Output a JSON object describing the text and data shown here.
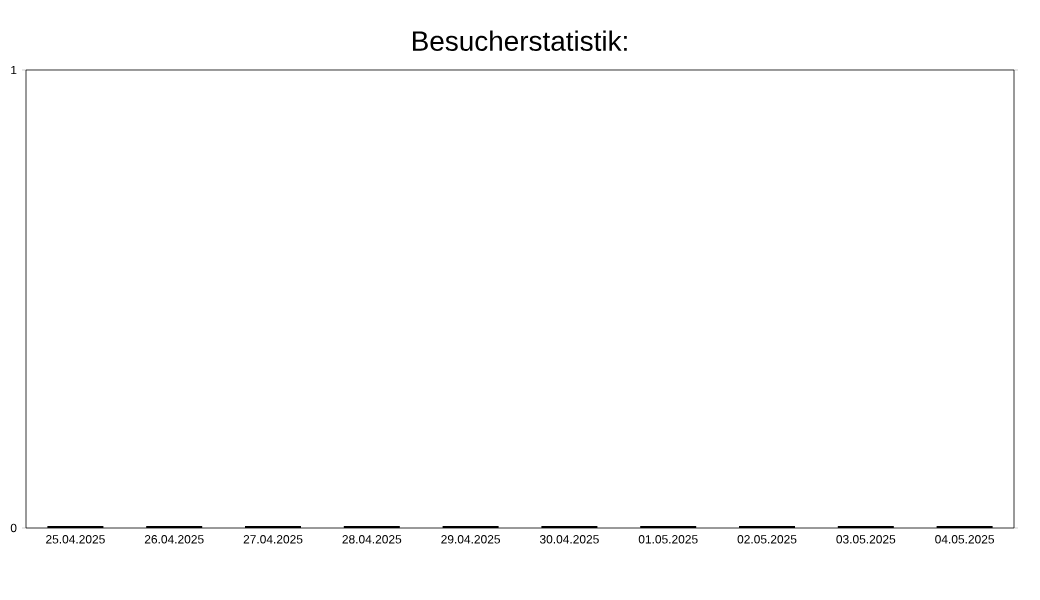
{
  "chart_data": {
    "type": "bar",
    "title": "Besucherstatistik:",
    "categories": [
      "25.04.2025",
      "26.04.2025",
      "27.04.2025",
      "28.04.2025",
      "29.04.2025",
      "30.04.2025",
      "01.05.2025",
      "02.05.2025",
      "03.05.2025",
      "04.05.2025"
    ],
    "values": [
      0,
      0,
      0,
      0,
      0,
      0,
      0,
      0,
      0,
      0
    ],
    "color": "#000000",
    "ylim": [
      0,
      1
    ],
    "yticks": [
      0,
      1
    ],
    "grid": false
  }
}
